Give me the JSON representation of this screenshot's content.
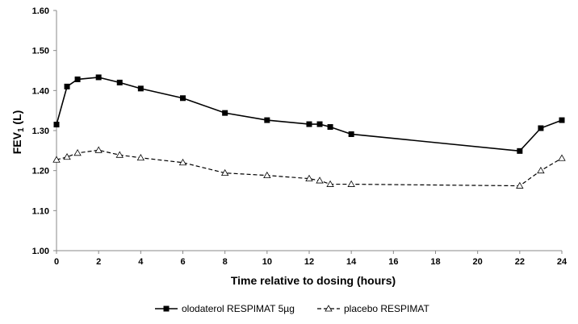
{
  "chart_data": {
    "type": "line",
    "xlabel": "Time relative to dosing (hours)",
    "ylabel_main": "FEV",
    "ylabel_sub": "1",
    "ylabel_unit": " (L)",
    "xlim": [
      0,
      24
    ],
    "ylim": [
      1.0,
      1.6
    ],
    "x_ticks": [
      "0",
      "2",
      "4",
      "6",
      "8",
      "10",
      "12",
      "14",
      "16",
      "18",
      "20",
      "22",
      "24"
    ],
    "y_ticks": [
      "1.00",
      "1.10",
      "1.20",
      "1.30",
      "1.40",
      "1.50",
      "1.60"
    ],
    "grid": false,
    "legend_position": "bottom",
    "series": [
      {
        "name": "olodaterol RESPIMAT 5µg",
        "color": "#000000",
        "marker": "square",
        "line_style": "solid",
        "x": [
          0,
          0.5,
          1,
          2,
          3,
          4,
          6,
          8,
          10,
          12,
          12.5,
          13,
          14,
          22,
          23,
          24
        ],
        "y": [
          1.315,
          1.41,
          1.428,
          1.433,
          1.42,
          1.405,
          1.381,
          1.344,
          1.326,
          1.316,
          1.316,
          1.309,
          1.291,
          1.249,
          1.306,
          1.326
        ]
      },
      {
        "name": "placebo RESPIMAT",
        "color": "#000000",
        "marker": "triangle",
        "line_style": "dashed",
        "x": [
          0,
          0.5,
          1,
          2,
          3,
          4,
          6,
          8,
          10,
          12,
          12.5,
          13,
          14,
          22,
          23,
          24
        ],
        "y": [
          1.227,
          1.234,
          1.244,
          1.251,
          1.239,
          1.232,
          1.22,
          1.194,
          1.188,
          1.18,
          1.175,
          1.166,
          1.166,
          1.162,
          1.2,
          1.231
        ]
      }
    ]
  }
}
